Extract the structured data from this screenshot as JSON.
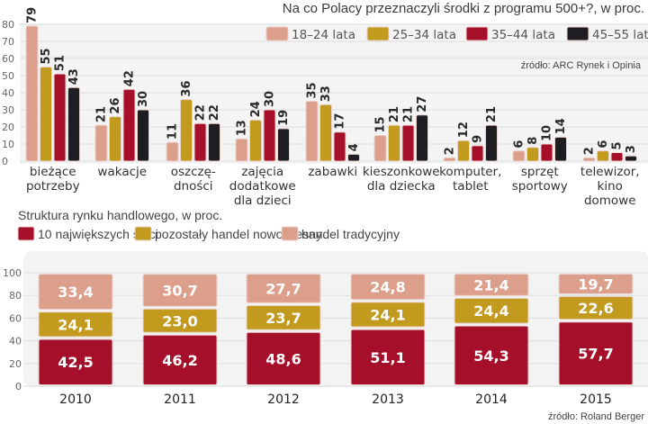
{
  "chart_data": [
    {
      "type": "bar",
      "title": "Na co Polacy przeznaczyli środki z programu 500+?, w proc.",
      "source": "źródło: ARC Rynek i Opinia",
      "xlabel": "",
      "ylabel": "",
      "ylim": [
        0,
        80
      ],
      "yticks": [
        0,
        10,
        20,
        30,
        40,
        50,
        60,
        70,
        80
      ],
      "grid": true,
      "legend_position": "top-right",
      "categories": [
        [
          "bieżące",
          "potrzeby"
        ],
        [
          "wakacje"
        ],
        [
          "oszczę-",
          "dności"
        ],
        [
          "zajęcia",
          "dodatkowe",
          "dla dzieci"
        ],
        [
          "zabawki"
        ],
        [
          "kieszonkowe",
          "dla dziecka"
        ],
        [
          "komputer,",
          "tablet"
        ],
        [
          "sprzęt",
          "sportowy"
        ],
        [
          "telewizor,",
          "kino",
          "domowe"
        ]
      ],
      "series": [
        {
          "name": "18–24 lata",
          "color": "#dc9f8b",
          "values": [
            79,
            21,
            11,
            13,
            35,
            15,
            2,
            6,
            2
          ]
        },
        {
          "name": "25–34 lata",
          "color": "#c29a1e",
          "values": [
            55,
            26,
            36,
            24,
            33,
            21,
            12,
            8,
            6
          ]
        },
        {
          "name": "35–44 lata",
          "color": "#a50f2a",
          "values": [
            51,
            42,
            22,
            30,
            17,
            21,
            9,
            10,
            5
          ]
        },
        {
          "name": "45–55 lat",
          "color": "#1e1e22",
          "values": [
            43,
            30,
            22,
            19,
            4,
            27,
            21,
            14,
            3
          ]
        }
      ]
    },
    {
      "type": "bar",
      "stacked": true,
      "title": "Struktura rynku handlowego, w proc.",
      "source": "źródło: Roland Berger",
      "xlabel": "",
      "ylabel": "",
      "ylim": [
        0,
        100
      ],
      "yticks": [
        0,
        20,
        40,
        60,
        80,
        100
      ],
      "grid": true,
      "legend_position": "top-left",
      "categories": [
        "2010",
        "2011",
        "2012",
        "2013",
        "2014",
        "2015"
      ],
      "series": [
        {
          "name": "10 największych sieci",
          "color": "#a50f2a",
          "values": [
            "42,5",
            "46,2",
            "48,6",
            "51,1",
            "54,3",
            "57,7"
          ]
        },
        {
          "name": "pozostały handel nowoczesny",
          "color": "#c29a1e",
          "values": [
            "24,1",
            "23,0",
            "23,7",
            "24,1",
            "24,4",
            "22,6"
          ]
        },
        {
          "name": "handel tradycyjny",
          "color": "#dc9f8b",
          "values": [
            "33,4",
            "30,7",
            "27,7",
            "24,8",
            "21,4",
            "19,7"
          ]
        }
      ]
    }
  ]
}
